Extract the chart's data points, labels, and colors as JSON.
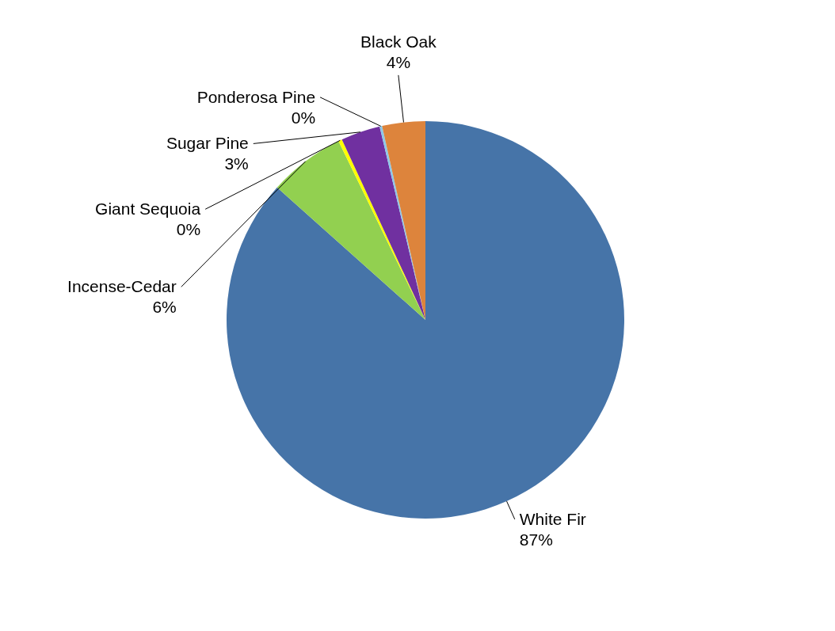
{
  "chart_data": {
    "type": "pie",
    "categories": [
      "White Fir",
      "Incense-Cedar",
      "Giant Sequoia",
      "Sugar Pine",
      "Ponderosa  Pine",
      "Black Oak"
    ],
    "values": [
      86.6,
      6.2,
      0.3,
      3.2,
      0.2,
      3.5
    ],
    "value_labels": [
      "87%",
      "6%",
      "0%",
      "3%",
      "0%",
      "4%"
    ],
    "colors": [
      "#4674a8",
      "#92d050",
      "#ffff00",
      "#7030a0",
      "#8ec8e8",
      "#dd843c"
    ]
  }
}
